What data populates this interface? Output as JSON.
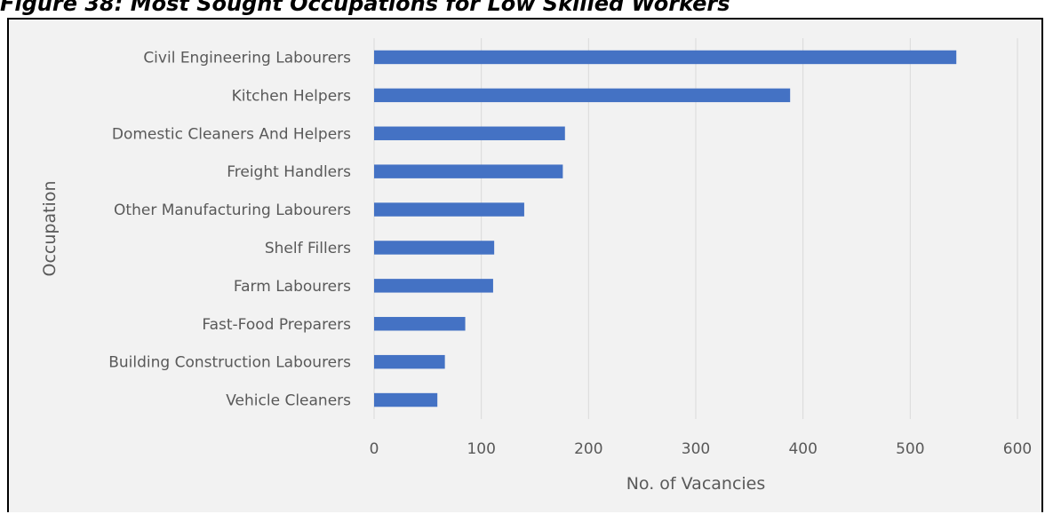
{
  "figure_title": "Figure 38: Most Sought Occupations for Low Skilled Workers",
  "chart_data": {
    "type": "bar",
    "orientation": "horizontal",
    "title": "",
    "xlabel": "No. of Vacancies",
    "ylabel": "Occupation",
    "categories": [
      "Civil Engineering Labourers",
      "Kitchen Helpers",
      "Domestic Cleaners And Helpers",
      "Freight Handlers",
      "Other Manufacturing Labourers",
      "Shelf Fillers",
      "Farm Labourers",
      "Fast-Food Preparers",
      "Building Construction Labourers",
      "Vehicle Cleaners"
    ],
    "values": [
      543,
      388,
      178,
      176,
      140,
      112,
      111,
      85,
      66,
      59
    ],
    "xlim": [
      0,
      600
    ],
    "xticks": [
      0,
      100,
      200,
      300,
      400,
      500,
      600
    ],
    "grid": "vertical",
    "legend": "none",
    "bar_color": "#4472c4",
    "grid_color": "#d9d9d9",
    "background_color": "#f2f2f2"
  }
}
